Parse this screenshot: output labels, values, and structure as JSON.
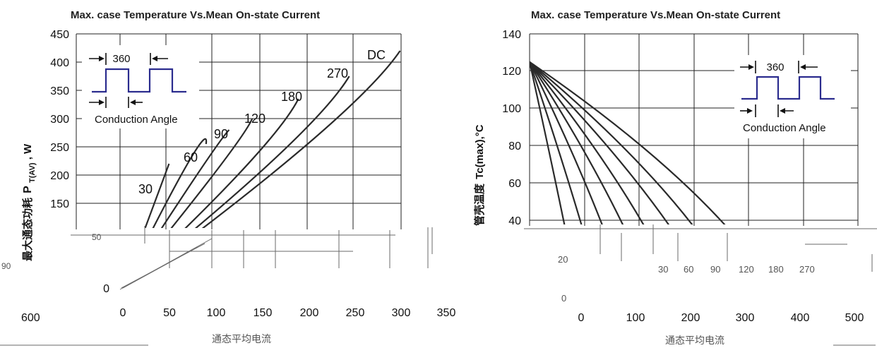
{
  "chart_data": [
    {
      "type": "line",
      "title": "Max. case Temperature Vs.Mean On-state Current",
      "ylabel_cn": "最大通态功耗",
      "ylabel_sym": "P",
      "ylabel_sub": "T(AV)",
      "ylabel_unit": "W",
      "yticks": [
        "450",
        "400",
        "350",
        "300",
        "250",
        "200",
        "150",
        "50",
        "0"
      ],
      "xticks": [
        "0",
        "50",
        "100",
        "150",
        "200",
        "250",
        "300",
        "350"
      ],
      "xlim": [
        0,
        350
      ],
      "ylim": [
        0,
        450
      ],
      "series": [
        {
          "name": "30",
          "points": [
            [
              0,
              0
            ],
            [
              50,
              220
            ]
          ]
        },
        {
          "name": "60",
          "points": [
            [
              0,
              0
            ],
            [
              70,
              220
            ],
            [
              90,
              255
            ]
          ]
        },
        {
          "name": "90",
          "points": [
            [
              0,
              0
            ],
            [
              80,
              200
            ],
            [
              115,
              280
            ]
          ]
        },
        {
          "name": "120",
          "points": [
            [
              0,
              0
            ],
            [
              100,
              205
            ],
            [
              140,
              300
            ]
          ]
        },
        {
          "name": "180",
          "points": [
            [
              0,
              0
            ],
            [
              130,
              210
            ],
            [
              190,
              335
            ]
          ]
        },
        {
          "name": "270",
          "points": [
            [
              0,
              0
            ],
            [
              165,
              230
            ],
            [
              245,
              375
            ]
          ]
        },
        {
          "name": "DC",
          "points": [
            [
              0,
              0
            ],
            [
              200,
              255
            ],
            [
              300,
              420
            ]
          ]
        }
      ],
      "inset": {
        "angle": "360",
        "label": "Conduction Angle"
      },
      "stray": {
        "left": "600",
        "nums": [
          "90",
          "50"
        ],
        "axis_cn": "通态平均电流"
      }
    },
    {
      "type": "line",
      "title": "Max. case Temperature Vs.Mean On-state Current",
      "ylabel_cn": "管壳温度",
      "ylabel_sym": "Tc(max),°C",
      "yticks": [
        "140",
        "120",
        "100",
        "80",
        "60",
        "40"
      ],
      "xticks": [
        "0",
        "100",
        "200",
        "300",
        "400",
        "500"
      ],
      "xlim": [
        0,
        500
      ],
      "ylim": [
        0,
        140
      ],
      "series": [
        {
          "name": "20",
          "points": [
            [
              0,
              125
            ],
            [
              40,
              60
            ],
            [
              75,
              0
            ]
          ]
        },
        {
          "name": "30",
          "points": [
            [
              0,
              125
            ],
            [
              60,
              60
            ],
            [
              110,
              0
            ]
          ]
        },
        {
          "name": "60",
          "points": [
            [
              0,
              125
            ],
            [
              85,
              60
            ],
            [
              150,
              0
            ]
          ]
        },
        {
          "name": "90",
          "points": [
            [
              0,
              125
            ],
            [
              110,
              60
            ],
            [
              190,
              0
            ]
          ]
        },
        {
          "name": "120",
          "points": [
            [
              0,
              125
            ],
            [
              135,
              60
            ],
            [
              230,
              0
            ]
          ]
        },
        {
          "name": "180",
          "points": [
            [
              0,
              125
            ],
            [
              165,
              60
            ],
            [
              280,
              0
            ]
          ]
        },
        {
          "name": "270",
          "points": [
            [
              0,
              125
            ],
            [
              195,
              60
            ],
            [
              320,
              0
            ]
          ]
        },
        {
          "name": "DC",
          "points": [
            [
              0,
              125
            ],
            [
              235,
              60
            ],
            [
              380,
              0
            ]
          ]
        }
      ],
      "angle_labels": [
        "20",
        "30",
        "60",
        "90",
        "120",
        "180",
        "270"
      ],
      "inset": {
        "angle": "360",
        "label": "Conduction Angle"
      },
      "stray": {
        "zero": "0",
        "axis_cn": "通态平均电流"
      }
    }
  ]
}
